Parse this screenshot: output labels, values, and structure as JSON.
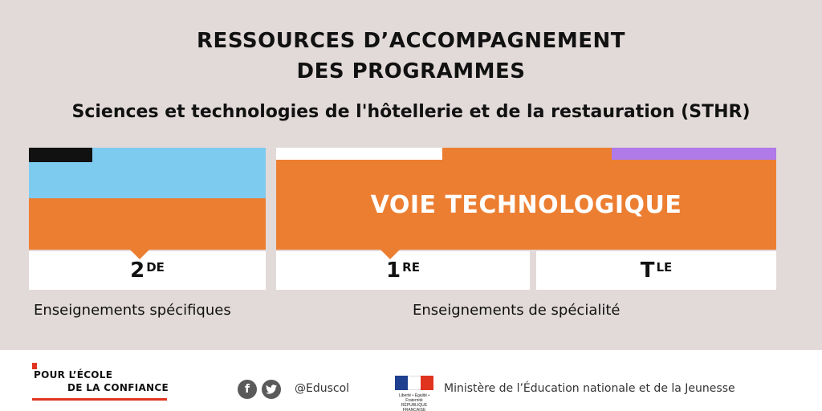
{
  "header": {
    "title_line1": "RESSOURCES D’ACCOMPAGNEMENT",
    "title_line2": "DES PROGRAMMES",
    "subtitle": "Sciences et technologies de l'hôtellerie et de la restauration (STHR)"
  },
  "track": {
    "label": "VOIE TECHNOLOGIQUE"
  },
  "grades": [
    {
      "main": "2",
      "sup": "DE"
    },
    {
      "main": "1",
      "sup": "RE"
    },
    {
      "main": "T",
      "sup": "LE"
    }
  ],
  "sections": {
    "left_label": "Enseignements spécifiques",
    "right_label": "Enseignements de spécialité"
  },
  "footer": {
    "logo_line1": "POUR L’ÉCOLE",
    "logo_line2": "DE LA CONFIANCE",
    "facebook_icon": "f",
    "twitter_icon": "twitter-bird",
    "handle": "@Eduscol",
    "rf_caption": "Liberté • Égalité • Fraternité RÉPUBLIQUE FRANÇAISE",
    "ministry": "Ministère de l’Éducation nationale et de la Jeunesse"
  },
  "colors": {
    "background": "#e2dad9",
    "orange": "#ec7e32",
    "light_blue": "#7ecbf0",
    "purple": "#b07ae8",
    "black_tab": "#111111",
    "accent_red": "#e0341f"
  }
}
